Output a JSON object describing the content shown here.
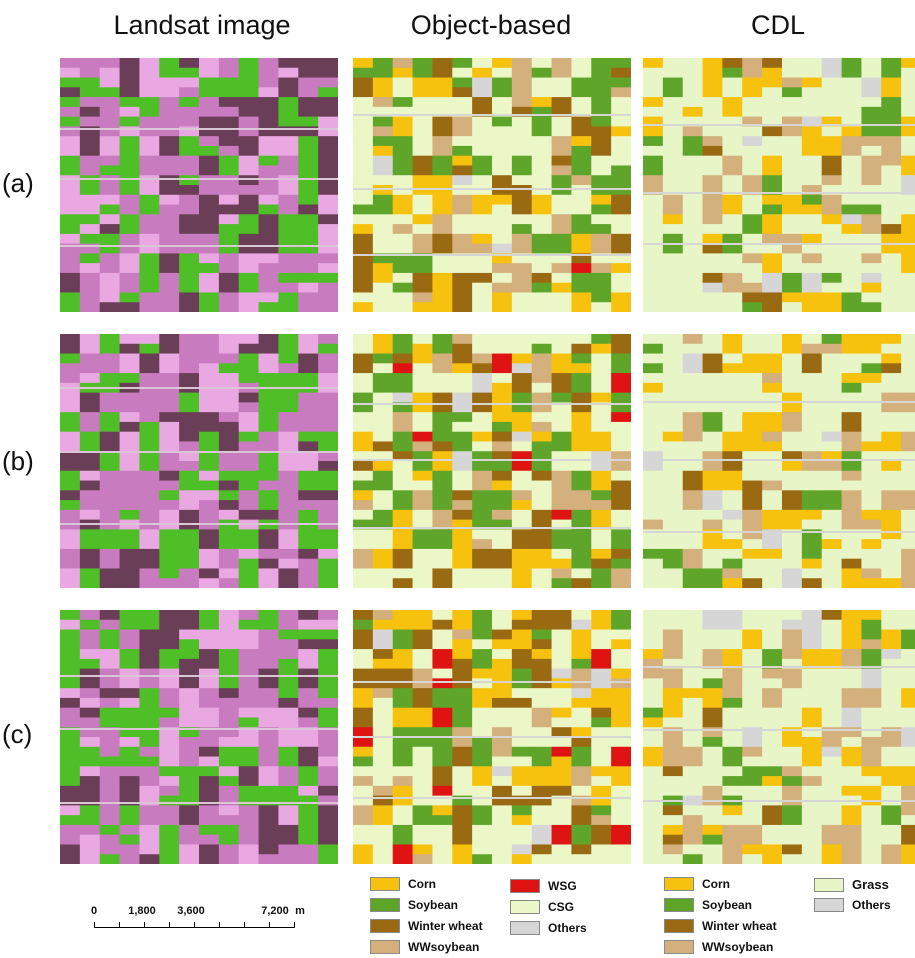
{
  "columns": [
    "Landsat image",
    "Object-based",
    "CDL"
  ],
  "rows": [
    "(a)",
    "(b)",
    "(c)"
  ],
  "colors": {
    "corn": "#f7c20e",
    "soybean": "#5fa52a",
    "winter_wheat": "#9a6a12",
    "wwsoybean": "#d3b07c",
    "wsg": "#e01313",
    "csg": "#ecf7c8",
    "grass": "#e8f5c6",
    "others": "#d6d6d6",
    "landsat_magenta": "#c97bbf",
    "landsat_pink": "#e9a8e2",
    "landsat_green": "#4fbf27",
    "landsat_dark": "#6b3e57"
  },
  "legend_object": [
    {
      "label": "Corn",
      "color_key": "corn"
    },
    {
      "label": "Soybean",
      "color_key": "soybean"
    },
    {
      "label": "Winter wheat",
      "color_key": "winter_wheat"
    },
    {
      "label": "WWsoybean",
      "color_key": "wwsoybean"
    },
    {
      "label": "WSG",
      "color_key": "wsg"
    },
    {
      "label": "CSG",
      "color_key": "csg"
    },
    {
      "label": "Others",
      "color_key": "others"
    }
  ],
  "legend_cdl": [
    {
      "label": "Corn",
      "color_key": "corn"
    },
    {
      "label": "Soybean",
      "color_key": "soybean"
    },
    {
      "label": "Winter wheat",
      "color_key": "winter_wheat"
    },
    {
      "label": "WWsoybean",
      "color_key": "wwsoybean"
    },
    {
      "label": "Grass",
      "color_key": "grass"
    },
    {
      "label": "Others",
      "color_key": "others"
    }
  ],
  "scale_bar": {
    "labels": [
      "0",
      "1,800",
      "3,600",
      "7,200"
    ],
    "unit": "m"
  }
}
